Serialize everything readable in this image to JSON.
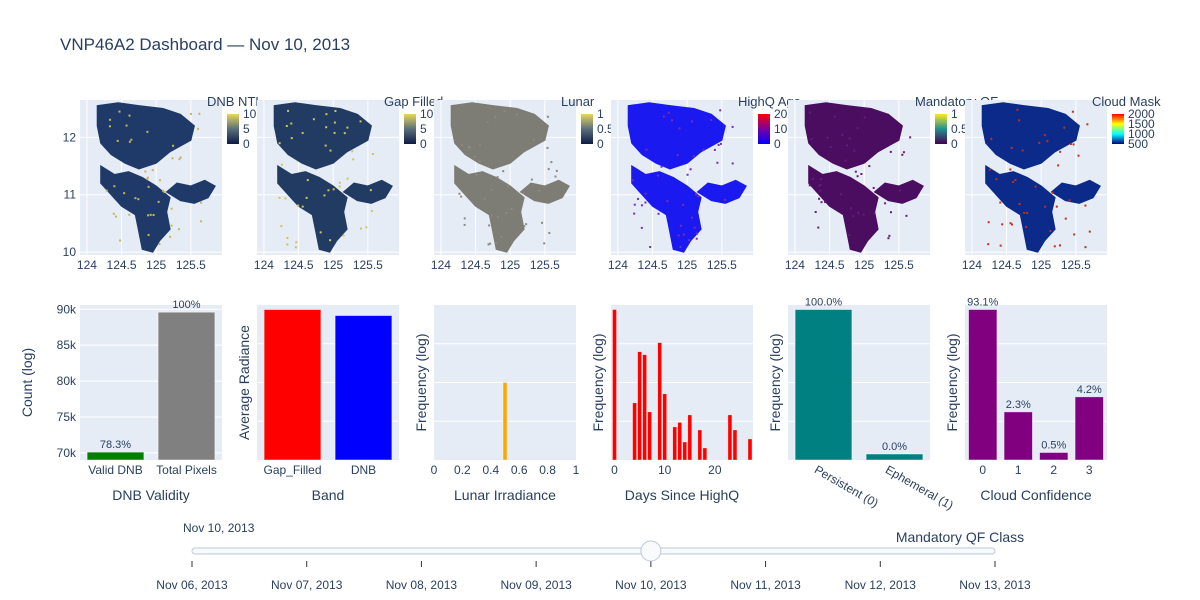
{
  "title": "VNP46A2 Dashboard — Nov 10, 2013",
  "colors": {
    "land": "#1f3f6e",
    "ocean": "#ffffff",
    "plot_bg": "#e5ecf6",
    "text": "#2a3f5f"
  },
  "maps": {
    "x_ticks": [
      "124",
      "124.5",
      "125",
      "125.5"
    ],
    "x_tick_values": [
      124,
      124.5,
      125,
      125.5
    ],
    "x_range": [
      123.9,
      125.95
    ],
    "y_ticks": [
      "12",
      "11",
      "10"
    ],
    "y_tick_values": [
      12,
      11,
      10
    ],
    "y_range": [
      9.95,
      12.65
    ],
    "panels": [
      {
        "title": "DNB NTL",
        "fill": "#1f3a68",
        "speck": "#c8b55a",
        "colorscale": [
          "#0d1b45",
          "#5a6f7a",
          "#e8d65a"
        ],
        "cb_ticks": [
          "10",
          "5",
          "0"
        ]
      },
      {
        "title": "Gap Filled",
        "fill": "#223b63",
        "speck": "#d2c25a",
        "colorscale": [
          "#0d1b45",
          "#5a6f7a",
          "#e8d65a"
        ],
        "cb_ticks": [
          "10",
          "5",
          "0"
        ]
      },
      {
        "title": "Lunar",
        "fill": "#7d7c75",
        "speck": "#8c8a7e",
        "colorscale": [
          "#0d1b45",
          "#5a6f7a",
          "#e8d65a"
        ],
        "cb_ticks": [
          "1",
          "0.5",
          "0"
        ]
      },
      {
        "title": "HighQ Age",
        "fill": "#1a1af0",
        "speck": "#7a2bb5",
        "colorscale": [
          "#0000ff",
          "#7a00a0",
          "#ff0000"
        ],
        "cb_ticks": [
          "20",
          "10",
          "0"
        ]
      },
      {
        "title": "Mandatory QF",
        "fill": "#4a0d5f",
        "speck": "#6a1a7a",
        "colorscale": [
          "#440154",
          "#21918c",
          "#fde725"
        ],
        "cb_ticks": [
          "1",
          "0.5",
          "0"
        ]
      },
      {
        "title": "Cloud Mask",
        "fill": "#0b2a8a",
        "speck": "#c0301a",
        "colorscale": [
          "#00007f",
          "#00ffff",
          "#ffff00",
          "#ff0000"
        ],
        "cb_ticks": [
          "2000",
          "1500",
          "1000",
          "500"
        ]
      }
    ]
  },
  "chart_data": [
    {
      "type": "bar",
      "categories": [
        "Valid DNB",
        "Total Pixels"
      ],
      "values": [
        70100,
        89600
      ],
      "text": [
        "78.3%",
        "100%"
      ],
      "colors": [
        "#008000",
        "#808080"
      ],
      "ylabel": "Count (log)",
      "xlabel": "DNB Validity",
      "ylim": [
        69000,
        90600
      ],
      "y_ticks": [
        "90k",
        "85k",
        "80k",
        "75k",
        "70k"
      ],
      "y_tick_values": [
        90000,
        85000,
        80000,
        75000,
        70000
      ]
    },
    {
      "type": "bar",
      "categories": [
        "Gap_Filled",
        "DNB"
      ],
      "values": [
        1.0,
        0.96
      ],
      "colors": [
        "#ff0000",
        "#0000ff"
      ],
      "ylabel": "Average Radiance",
      "xlabel": "Band",
      "ylim": [
        0,
        1.03
      ]
    },
    {
      "type": "bar",
      "x_numeric": [
        0.5
      ],
      "values": [
        0.5
      ],
      "colors": [
        "#ffa500"
      ],
      "ylabel": "Frequency (log)",
      "xlabel": "Lunar Irradiance",
      "xlim": [
        0,
        1
      ],
      "x_ticks": [
        "0",
        "0.2",
        "0.4",
        "0.6",
        "0.8",
        "1"
      ],
      "x_tick_values": [
        0,
        0.2,
        0.4,
        0.6,
        0.8,
        1
      ],
      "ylim": [
        0,
        1
      ]
    },
    {
      "type": "bar",
      "x_numeric": [
        0,
        4,
        5,
        6,
        7,
        9,
        10,
        12,
        13,
        14,
        15,
        17,
        18,
        23,
        24,
        27
      ],
      "values": [
        1.0,
        0.38,
        0.72,
        0.7,
        0.32,
        0.78,
        0.44,
        0.22,
        0.25,
        0.12,
        0.3,
        0.2,
        0.08,
        0.3,
        0.2,
        0.14
      ],
      "colors": [
        "#ff0000"
      ],
      "ylabel": "Frequency (log)",
      "xlabel": "Days Since HighQ",
      "xlim": [
        -0.7,
        27.6
      ],
      "x_ticks": [
        "0",
        "10",
        "20"
      ],
      "x_tick_values": [
        0,
        10,
        20
      ],
      "ylim": [
        0,
        1.03
      ]
    },
    {
      "type": "bar",
      "categories": [
        "Persistent (0)",
        "Ephemeral (1)"
      ],
      "values": [
        1.0,
        0.04
      ],
      "text": [
        "100.0%",
        "0.0%"
      ],
      "colors": [
        "#008080",
        "#008080"
      ],
      "ylabel": "Frequency (log)",
      "xlabel": "Mandatory QF Class",
      "ylim": [
        0,
        1.03
      ]
    },
    {
      "type": "bar",
      "categories": [
        "0",
        "1",
        "2",
        "3"
      ],
      "values": [
        1.0,
        0.32,
        0.05,
        0.42
      ],
      "text": [
        "93.1%",
        "2.3%",
        "0.5%",
        "4.2%"
      ],
      "colors": [
        "#800080",
        "#800080",
        "#800080",
        "#800080"
      ],
      "ylabel": "Frequency (log)",
      "xlabel": "Cloud Confidence",
      "ylim": [
        0,
        1.03
      ]
    }
  ],
  "slider": {
    "current_label": "Nov 10, 2013",
    "steps": [
      "Nov 06, 2013",
      "Nov 07, 2013",
      "Nov 08, 2013",
      "Nov 09, 2013",
      "Nov 10, 2013",
      "Nov 11, 2013",
      "Nov 12, 2013",
      "Nov 13, 2013"
    ],
    "active_index": 4
  }
}
